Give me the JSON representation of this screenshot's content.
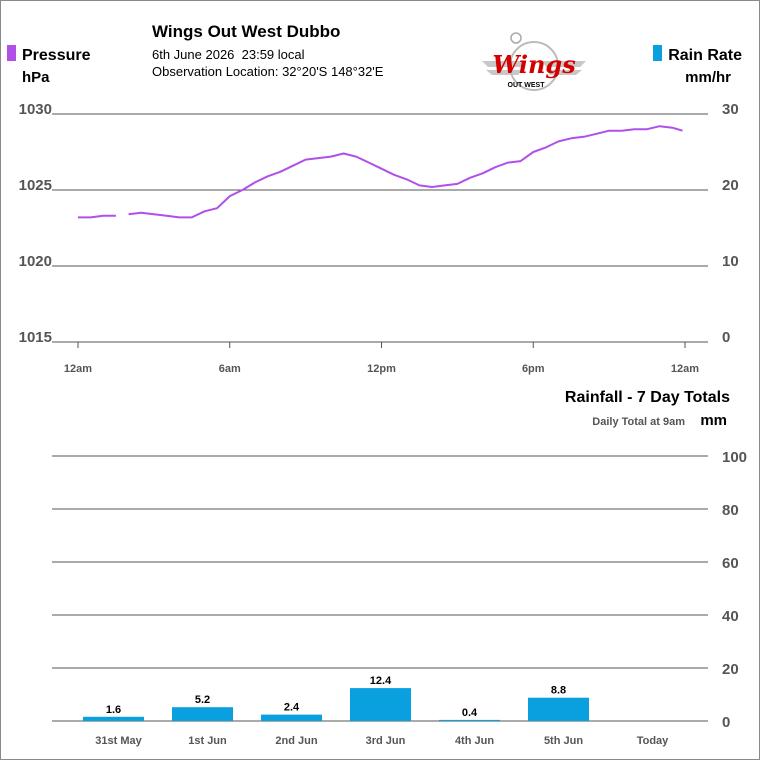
{
  "header": {
    "title": "Wings Out West Dubbo",
    "datetime": "6th June 2026  23:59 local",
    "location": "Observation Location: 32°20'S 148°32'E"
  },
  "logo": {
    "word": "Wings",
    "sub": "OUT WEST"
  },
  "colors": {
    "pressure": "#b050e8",
    "rain": "#0aa0e0",
    "grid": "#555555",
    "axis_text": "#555555"
  },
  "chart_data": [
    {
      "type": "line",
      "left_legend": {
        "label": "Pressure",
        "unit": "hPa"
      },
      "right_legend": {
        "label": "Rain Rate",
        "unit": "mm/hr"
      },
      "x_ticks": [
        "12am",
        "6am",
        "12pm",
        "6pm",
        "12am"
      ],
      "y_left_ticks": [
        "1030",
        "1025",
        "1020",
        "1015"
      ],
      "y_right_ticks": [
        "30",
        "20",
        "10",
        "0"
      ],
      "ylim_left": [
        1015,
        1030
      ],
      "ylim_right": [
        0,
        30
      ],
      "xlim_hours": [
        0,
        24
      ],
      "grid": true,
      "series": [
        {
          "color": "#b050e8",
          "x": [
            0,
            0.5,
            1,
            1.5,
            2,
            2.5,
            3,
            3.5,
            4,
            4.5,
            5,
            5.5,
            6,
            6.5,
            7,
            7.5,
            8,
            8.5,
            9,
            9.5,
            10,
            10.5,
            11,
            11.5,
            12,
            12.5,
            13,
            13.5,
            14,
            14.5,
            15,
            15.5,
            16,
            16.5,
            17,
            17.5,
            18,
            18.5,
            19,
            19.5,
            20,
            20.5,
            21,
            21.5,
            22,
            22.5,
            23,
            23.5,
            23.9
          ],
          "y": [
            1023.2,
            1023.2,
            1023.3,
            1023.3,
            1023.4,
            1023.5,
            1023.4,
            1023.3,
            1023.2,
            1023.2,
            1023.6,
            1023.8,
            1024.6,
            1025.0,
            1025.5,
            1025.9,
            1026.2,
            1026.6,
            1027.0,
            1027.1,
            1027.2,
            1027.4,
            1027.2,
            1026.8,
            1026.4,
            1026.0,
            1025.7,
            1025.3,
            1025.2,
            1025.3,
            1025.4,
            1025.8,
            1026.1,
            1026.5,
            1026.8,
            1026.9,
            1027.5,
            1027.8,
            1028.2,
            1028.4,
            1028.5,
            1028.7,
            1028.9,
            1028.9,
            1029.0,
            1029.0,
            1029.2,
            1029.1,
            1028.9
          ],
          "gaps_after_x": [
            1.5
          ]
        }
      ]
    },
    {
      "type": "bar",
      "title": "Rainfall - 7 Day Totals",
      "subtitle": "Daily Total at 9am",
      "unit": "mm",
      "categories": [
        "31st May",
        "1st Jun",
        "2nd Jun",
        "3rd Jun",
        "4th Jun",
        "5th Jun",
        "Today"
      ],
      "values": [
        1.6,
        5.2,
        2.4,
        12.4,
        0.4,
        8.8,
        null
      ],
      "value_labels": [
        "1.6",
        "5.2",
        "2.4",
        "12.4",
        "0.4",
        "8.8",
        ""
      ],
      "y_ticks": [
        "100",
        "80",
        "60",
        "40",
        "20",
        "0"
      ],
      "ylim": [
        0,
        100
      ],
      "grid": true,
      "color": "#0aa0e0"
    }
  ]
}
